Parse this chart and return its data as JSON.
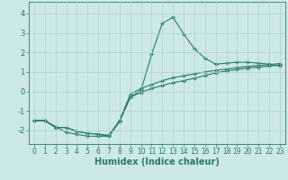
{
  "title": "",
  "xlabel": "Humidex (Indice chaleur)",
  "ylabel": "",
  "background_color": "#cce8e8",
  "line_color": "#2a7a6a",
  "grid_color": "#b0d0d0",
  "xlim": [
    -0.5,
    23.5
  ],
  "ylim": [
    -2.7,
    4.6
  ],
  "yticks": [
    -2,
    -1,
    0,
    1,
    2,
    3,
    4
  ],
  "xticks": [
    0,
    1,
    2,
    3,
    4,
    5,
    6,
    7,
    8,
    9,
    10,
    11,
    12,
    13,
    14,
    15,
    16,
    17,
    18,
    19,
    20,
    21,
    22,
    23
  ],
  "curve1_x": [
    0,
    1,
    2,
    3,
    4,
    5,
    6,
    7,
    8,
    9,
    10,
    11,
    12,
    13,
    14,
    15,
    16,
    17,
    18,
    19,
    20,
    21,
    22,
    23
  ],
  "curve1_y": [
    -1.5,
    -1.5,
    -1.8,
    -2.1,
    -2.2,
    -2.3,
    -2.3,
    -2.3,
    -1.55,
    -0.3,
    0.05,
    1.9,
    3.5,
    3.8,
    2.95,
    2.2,
    1.7,
    1.4,
    1.45,
    1.5,
    1.5,
    1.45,
    1.4,
    1.3
  ],
  "curve2_x": [
    0,
    1,
    2,
    3,
    4,
    5,
    6,
    7,
    8,
    9,
    10,
    11,
    12,
    13,
    14,
    15,
    16,
    17,
    18,
    19,
    20,
    21,
    22,
    23
  ],
  "curve2_y": [
    -1.5,
    -1.5,
    -1.85,
    -1.85,
    -2.05,
    -2.15,
    -2.2,
    -2.25,
    -1.5,
    -0.3,
    -0.05,
    0.15,
    0.3,
    0.45,
    0.55,
    0.68,
    0.82,
    0.95,
    1.05,
    1.12,
    1.2,
    1.25,
    1.3,
    1.35
  ],
  "curve3_x": [
    0,
    1,
    2,
    3,
    4,
    5,
    6,
    7,
    8,
    9,
    10,
    11,
    12,
    13,
    14,
    15,
    16,
    17,
    18,
    19,
    20,
    21,
    22,
    23
  ],
  "curve3_y": [
    -1.5,
    -1.5,
    -1.85,
    -1.85,
    -2.05,
    -2.15,
    -2.2,
    -2.3,
    -1.5,
    -0.15,
    0.15,
    0.35,
    0.55,
    0.7,
    0.8,
    0.9,
    1.0,
    1.08,
    1.15,
    1.22,
    1.28,
    1.33,
    1.38,
    1.43
  ]
}
